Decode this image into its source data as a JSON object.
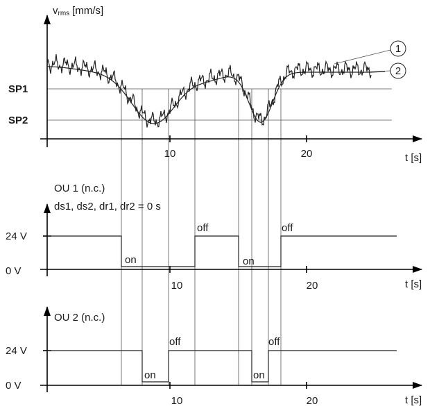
{
  "top": {
    "y_label": {
      "symbol": "v",
      "subscript": "rms",
      "unit": "[mm/s]"
    },
    "setpoints": [
      "SP1",
      "SP2"
    ],
    "callouts": [
      "1",
      "2"
    ],
    "x_ticks": [
      "10",
      "20"
    ],
    "x_label": "t [s]"
  },
  "panels": [
    {
      "title": "OU 1 (n.c.)",
      "note": "ds1, ds2, dr1, dr2 = 0 s",
      "levels": [
        "24 V",
        "0 V"
      ],
      "states": [
        "on",
        "off",
        "on",
        "off"
      ],
      "x_ticks": [
        "10",
        "20"
      ],
      "x_label": "t [s]"
    },
    {
      "title": "OU 2 (n.c.)",
      "levels": [
        "24 V",
        "0 V"
      ],
      "states": [
        "on",
        "off",
        "on",
        "off"
      ],
      "x_ticks": [
        "10",
        "20"
      ],
      "x_label": "t [s]"
    }
  ]
}
